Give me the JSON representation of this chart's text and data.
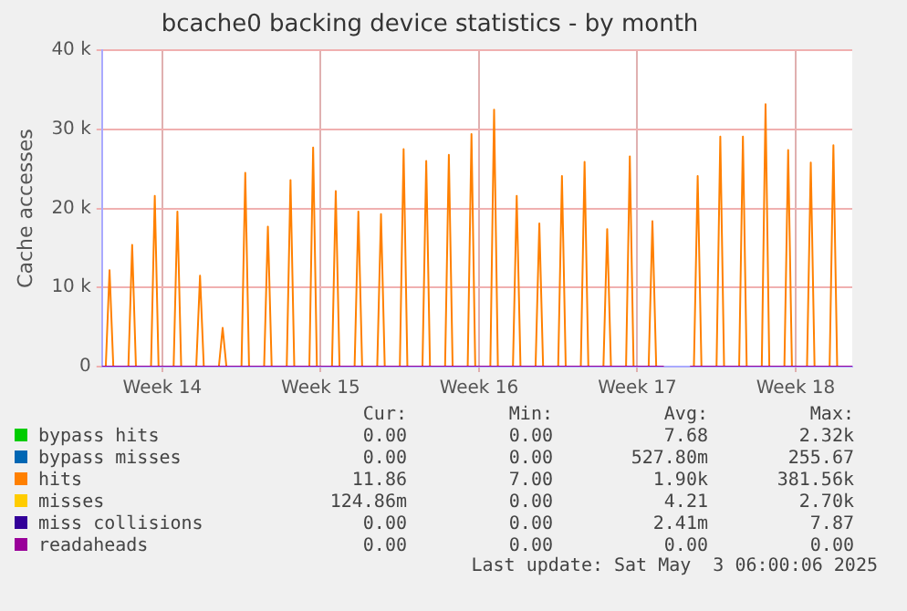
{
  "chart_data": {
    "type": "line",
    "title": "bcache0 backing device statistics - by month",
    "ylabel": "Cache accesses",
    "categories": [
      null,
      null,
      null,
      null,
      null,
      null,
      null,
      null,
      null,
      null,
      null,
      null,
      null,
      null,
      null,
      null,
      "Week 14",
      null,
      null,
      null,
      null,
      null,
      null,
      null,
      null,
      null,
      null,
      null,
      null,
      null,
      null,
      null,
      null,
      null,
      null,
      null,
      null,
      null,
      null,
      null,
      null,
      null,
      null,
      null,
      null,
      null,
      null,
      null,
      null,
      null,
      null,
      null,
      null,
      null,
      null,
      null,
      null,
      null,
      "Week 15",
      null,
      null,
      null,
      null,
      null,
      null,
      null,
      null,
      null,
      null,
      null,
      null,
      null,
      null,
      null,
      null,
      null,
      null,
      null,
      null,
      null,
      null,
      null,
      null,
      null,
      null,
      null,
      null,
      null,
      null,
      null,
      null,
      null,
      null,
      null,
      null,
      null,
      null,
      null,
      null,
      null,
      "Week 16",
      null,
      null,
      null,
      null,
      null,
      null,
      null,
      null,
      null,
      null,
      null,
      null,
      null,
      null,
      null,
      null,
      null,
      null,
      null,
      null,
      null,
      null,
      null,
      null,
      null,
      null,
      null,
      null,
      null,
      null,
      null,
      null,
      null,
      null,
      null,
      null,
      null,
      null,
      null,
      null,
      null,
      "Week 17",
      null,
      null,
      null,
      null,
      null,
      null,
      null,
      null,
      null,
      null,
      null,
      null,
      null,
      null,
      null,
      null,
      null,
      null,
      null,
      null,
      null,
      null,
      null,
      null,
      null,
      null,
      null,
      null,
      null,
      null,
      null,
      null,
      null,
      null,
      null,
      null,
      null,
      null,
      null,
      null,
      null,
      "Week 18",
      null,
      null,
      null,
      null,
      null,
      null,
      null,
      null,
      null,
      null,
      null,
      null,
      null,
      null,
      null
    ],
    "ylim": [
      0,
      40000
    ],
    "yticks": [
      {
        "value": 0,
        "label": "0"
      },
      {
        "value": 10000,
        "label": "10 k"
      },
      {
        "value": 20000,
        "label": "20 k"
      },
      {
        "value": 30000,
        "label": "30 k"
      },
      {
        "value": 40000,
        "label": "40 k"
      }
    ],
    "grid": true,
    "legend": "bottom",
    "marker": "none",
    "line_style": "solid",
    "series": [
      {
        "name": "bypass hits",
        "color": "#00cc00",
        "values": [
          null,
          null,
          null,
          null,
          null,
          null,
          null,
          null,
          null,
          null,
          null,
          null,
          null,
          null,
          null,
          null,
          null,
          null,
          null,
          null,
          null,
          null,
          null,
          null,
          null,
          null,
          null,
          null,
          null,
          null,
          null,
          null,
          null,
          null,
          null,
          null,
          null,
          null,
          null,
          null,
          null,
          null,
          null,
          null,
          null,
          null,
          null,
          null,
          null,
          null,
          null,
          null,
          null,
          null,
          null,
          null,
          null,
          null,
          null,
          null,
          null,
          null,
          null,
          null,
          null,
          null,
          null,
          null,
          null,
          null,
          null,
          null,
          null,
          null,
          null,
          null,
          null,
          null,
          null,
          null,
          null,
          null,
          null,
          null,
          null,
          null,
          null,
          null,
          null,
          null,
          null,
          null,
          null,
          null,
          null,
          null,
          null,
          null,
          null,
          null,
          null,
          null,
          null,
          null,
          null,
          null,
          null,
          null,
          null,
          null,
          null,
          null,
          null,
          null,
          null,
          null,
          null,
          null,
          null,
          null,
          null,
          null,
          null,
          null,
          null,
          null,
          null,
          null,
          null,
          null,
          null,
          null,
          null,
          null,
          null,
          null,
          null,
          null,
          null,
          null,
          null,
          null,
          null,
          null,
          null,
          null,
          null,
          null,
          null,
          null,
          null,
          null,
          null,
          null,
          null,
          null,
          null,
          null,
          null,
          null,
          null,
          null,
          null,
          null,
          null,
          null,
          null,
          null,
          null,
          null,
          null,
          null,
          null,
          null,
          null,
          null,
          null,
          null,
          null,
          null,
          null,
          null,
          null,
          null,
          null,
          null,
          null,
          null,
          null,
          null,
          null,
          null,
          null,
          null,
          null,
          null,
          null,
          null,
          null,
          null
        ]
      },
      {
        "name": "bypass misses",
        "color": "#0066b3",
        "values": [
          null,
          null,
          null,
          null,
          null,
          null,
          null,
          null,
          null,
          null,
          null,
          null,
          null,
          null,
          null,
          null,
          null,
          null,
          null,
          null,
          null,
          null,
          null,
          null,
          null,
          null,
          null,
          null,
          null,
          null,
          null,
          null,
          null,
          null,
          null,
          null,
          null,
          null,
          null,
          null,
          null,
          null,
          null,
          null,
          null,
          null,
          null,
          null,
          null,
          null,
          null,
          null,
          null,
          null,
          null,
          null,
          null,
          null,
          null,
          null,
          null,
          null,
          null,
          null,
          null,
          null,
          null,
          null,
          null,
          null,
          null,
          null,
          null,
          null,
          null,
          null,
          null,
          null,
          null,
          null,
          null,
          null,
          null,
          null,
          null,
          null,
          null,
          null,
          null,
          null,
          null,
          null,
          null,
          null,
          null,
          null,
          null,
          null,
          null,
          null,
          null,
          null,
          null,
          null,
          null,
          null,
          null,
          null,
          null,
          null,
          null,
          null,
          null,
          null,
          null,
          null,
          null,
          null,
          null,
          null,
          null,
          null,
          null,
          null,
          null,
          null,
          null,
          null,
          null,
          null,
          null,
          null,
          null,
          null,
          null,
          null,
          null,
          null,
          null,
          null,
          null,
          null,
          null,
          null,
          null,
          null,
          null,
          null,
          null,
          null,
          null,
          null,
          null,
          null,
          null,
          null,
          null,
          null,
          null,
          null,
          null,
          null,
          null,
          null,
          null,
          null,
          null,
          null,
          null,
          null,
          null,
          null,
          null,
          null,
          null,
          null,
          null,
          null,
          null,
          null,
          null,
          null,
          null,
          null,
          null,
          null,
          null,
          null,
          null,
          null,
          null,
          null,
          null,
          null,
          null,
          null,
          null,
          null,
          null,
          null
        ]
      },
      {
        "name": "hits",
        "color": "#ff8000",
        "values": [
          0,
          0,
          12200,
          0,
          0,
          0,
          0,
          0,
          15400,
          0,
          0,
          0,
          0,
          0,
          21600,
          0,
          0,
          0,
          0,
          0,
          19600,
          0,
          0,
          0,
          0,
          0,
          11500,
          0,
          0,
          0,
          0,
          0,
          4900,
          0,
          0,
          0,
          0,
          0,
          24500,
          0,
          0,
          0,
          0,
          0,
          17700,
          0,
          0,
          0,
          0,
          0,
          23600,
          0,
          0,
          0,
          0,
          0,
          27700,
          0,
          0,
          0,
          0,
          0,
          22200,
          0,
          0,
          0,
          0,
          0,
          19600,
          0,
          0,
          0,
          0,
          0,
          19300,
          0,
          0,
          0,
          0,
          0,
          27500,
          0,
          0,
          0,
          0,
          0,
          26000,
          0,
          0,
          0,
          0,
          0,
          26800,
          0,
          0,
          0,
          0,
          0,
          29400,
          0,
          0,
          0,
          0,
          0,
          32500,
          0,
          0,
          0,
          0,
          0,
          21600,
          0,
          0,
          0,
          0,
          0,
          18100,
          0,
          0,
          0,
          0,
          0,
          24100,
          0,
          0,
          0,
          0,
          0,
          25900,
          0,
          0,
          0,
          0,
          0,
          17400,
          0,
          0,
          0,
          0,
          0,
          26600,
          0,
          0,
          0,
          0,
          0,
          18400,
          0,
          0,
          0,
          null,
          null,
          null,
          null,
          null,
          null,
          0,
          0,
          24100,
          0,
          0,
          0,
          0,
          0,
          29100,
          0,
          0,
          0,
          0,
          0,
          29100,
          0,
          0,
          0,
          0,
          0,
          33200,
          0,
          0,
          0,
          0,
          0,
          27400,
          0,
          0,
          0,
          0,
          0,
          25800,
          0,
          0,
          0,
          0,
          0,
          28000,
          0,
          0,
          0,
          0,
          0
        ]
      },
      {
        "name": "misses",
        "color": "#ffcc00",
        "values": [
          null,
          null,
          null,
          null,
          null,
          null,
          null,
          null,
          null,
          null,
          null,
          null,
          null,
          null,
          null,
          null,
          null,
          null,
          null,
          null,
          null,
          null,
          null,
          null,
          null,
          null,
          null,
          null,
          null,
          null,
          null,
          null,
          null,
          null,
          null,
          null,
          null,
          null,
          null,
          null,
          null,
          null,
          null,
          null,
          null,
          null,
          null,
          null,
          null,
          null,
          null,
          null,
          null,
          null,
          null,
          null,
          null,
          null,
          null,
          null,
          null,
          null,
          null,
          null,
          null,
          null,
          null,
          null,
          null,
          null,
          null,
          null,
          null,
          null,
          null,
          null,
          null,
          null,
          null,
          null,
          null,
          null,
          null,
          null,
          null,
          null,
          null,
          null,
          null,
          null,
          null,
          null,
          null,
          null,
          null,
          null,
          null,
          null,
          null,
          null,
          null,
          null,
          null,
          null,
          null,
          null,
          null,
          null,
          null,
          null,
          null,
          null,
          null,
          null,
          null,
          null,
          null,
          null,
          null,
          null,
          null,
          null,
          null,
          null,
          null,
          null,
          null,
          null,
          null,
          null,
          null,
          null,
          null,
          null,
          null,
          null,
          null,
          null,
          null,
          null,
          null,
          null,
          null,
          null,
          null,
          null,
          null,
          null,
          null,
          null,
          null,
          null,
          null,
          null,
          null,
          null,
          null,
          null,
          null,
          null,
          null,
          null,
          null,
          null,
          null,
          null,
          null,
          null,
          null,
          null,
          null,
          null,
          null,
          null,
          null,
          null,
          null,
          null,
          null,
          null,
          null,
          null,
          null,
          null,
          null,
          null,
          null,
          null,
          null,
          null,
          null,
          null,
          null,
          null,
          null,
          null,
          null,
          null,
          null,
          null
        ]
      },
      {
        "name": "miss collisions",
        "color": "#330099",
        "values": [
          null,
          null,
          null,
          null,
          null,
          null,
          null,
          null,
          null,
          null,
          null,
          null,
          null,
          null,
          null,
          null,
          null,
          null,
          null,
          null,
          null,
          null,
          null,
          null,
          null,
          null,
          null,
          null,
          null,
          null,
          null,
          null,
          null,
          null,
          null,
          null,
          null,
          null,
          null,
          null,
          null,
          null,
          null,
          null,
          null,
          null,
          null,
          null,
          null,
          null,
          null,
          null,
          null,
          null,
          null,
          null,
          null,
          null,
          null,
          null,
          null,
          null,
          null,
          null,
          null,
          null,
          null,
          null,
          null,
          null,
          null,
          null,
          null,
          null,
          null,
          null,
          null,
          null,
          null,
          null,
          null,
          null,
          null,
          null,
          null,
          null,
          null,
          null,
          null,
          null,
          null,
          null,
          null,
          null,
          null,
          null,
          null,
          null,
          null,
          null,
          null,
          null,
          null,
          null,
          null,
          null,
          null,
          null,
          null,
          null,
          null,
          null,
          null,
          null,
          null,
          null,
          null,
          null,
          null,
          null,
          null,
          null,
          null,
          null,
          null,
          null,
          null,
          null,
          null,
          null,
          null,
          null,
          null,
          null,
          null,
          null,
          null,
          null,
          null,
          null,
          null,
          null,
          null,
          null,
          null,
          null,
          null,
          null,
          null,
          null,
          null,
          null,
          null,
          null,
          null,
          null,
          null,
          null,
          null,
          null,
          null,
          null,
          null,
          null,
          null,
          null,
          null,
          null,
          null,
          null,
          null,
          null,
          null,
          null,
          null,
          null,
          null,
          null,
          null,
          null,
          null,
          null,
          null,
          null,
          null,
          null,
          null,
          null,
          null,
          null,
          null,
          null,
          null,
          null,
          null,
          null,
          null,
          null,
          null,
          null
        ]
      },
      {
        "name": "readaheads",
        "color": "#990099",
        "values": [
          0,
          0,
          0,
          0,
          0,
          0,
          0,
          0,
          0,
          0,
          0,
          0,
          0,
          0,
          0,
          0,
          0,
          0,
          0,
          0,
          0,
          0,
          0,
          0,
          0,
          0,
          0,
          0,
          0,
          0,
          0,
          0,
          0,
          0,
          0,
          0,
          0,
          0,
          0,
          0,
          0,
          0,
          0,
          0,
          0,
          0,
          0,
          0,
          0,
          0,
          0,
          0,
          0,
          0,
          0,
          0,
          0,
          0,
          0,
          0,
          0,
          0,
          0,
          0,
          0,
          0,
          0,
          0,
          0,
          0,
          0,
          0,
          0,
          0,
          0,
          0,
          0,
          0,
          0,
          0,
          0,
          0,
          0,
          0,
          0,
          0,
          0,
          0,
          0,
          0,
          0,
          0,
          0,
          0,
          0,
          0,
          0,
          0,
          0,
          0,
          0,
          0,
          0,
          0,
          0,
          0,
          0,
          0,
          0,
          0,
          0,
          0,
          0,
          0,
          0,
          0,
          0,
          0,
          0,
          0,
          0,
          0,
          0,
          0,
          0,
          0,
          0,
          0,
          0,
          0,
          0,
          0,
          0,
          0,
          0,
          0,
          0,
          0,
          0,
          0,
          0,
          0,
          0,
          0,
          0,
          0,
          0,
          0,
          0,
          0,
          null,
          null,
          null,
          null,
          null,
          null,
          0,
          0,
          0,
          0,
          0,
          0,
          0,
          0,
          0,
          0,
          0,
          0,
          0,
          0,
          0,
          0,
          0,
          0,
          0,
          0,
          0,
          0,
          0,
          0,
          0,
          0,
          0,
          0,
          0,
          0,
          0,
          0,
          0,
          0,
          0,
          0,
          0,
          0,
          0,
          0,
          0,
          0,
          0,
          0
        ]
      }
    ],
    "annotations": [
      "Cur:",
      "Min:",
      "Avg:",
      "Max:",
      "0.00",
      "0.00",
      "7.68",
      "2.32k",
      "0.00",
      "0.00",
      "527.80m",
      "255.67",
      "11.86",
      "7.00",
      "1.90k",
      "381.56k",
      "124.86m",
      "0.00",
      "4.21",
      "2.70k",
      "0.00",
      "0.00",
      "2.41m",
      "7.87",
      "0.00",
      "0.00",
      "0.00",
      "0.00",
      "Last update: Sat May  3 06:00:06 2025"
    ]
  }
}
